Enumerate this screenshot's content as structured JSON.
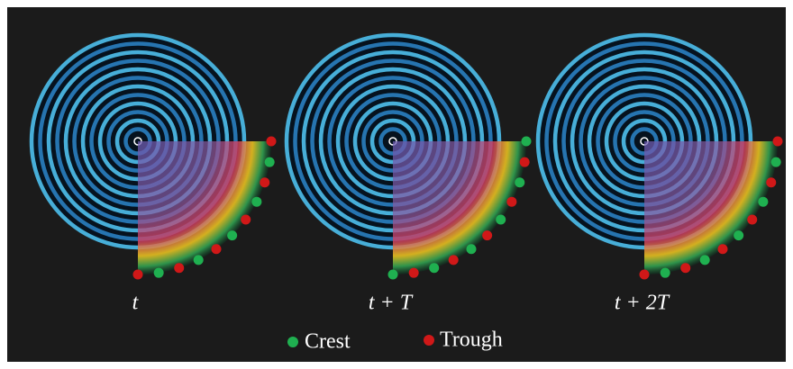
{
  "panels": [
    {
      "label": "t"
    },
    {
      "label": "t + T"
    },
    {
      "label": "t + 2T"
    }
  ],
  "legend": [
    {
      "label": "Crest"
    },
    {
      "label": "Trough"
    }
  ]
}
